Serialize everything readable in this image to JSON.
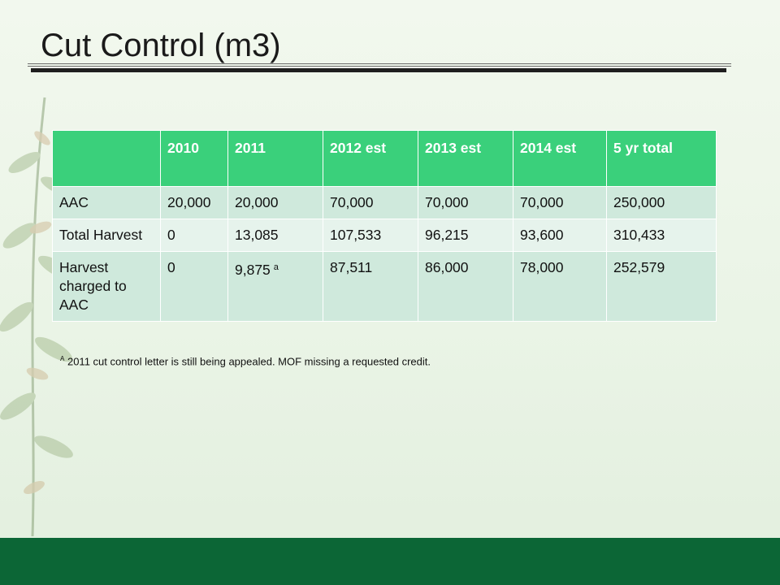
{
  "slide": {
    "title": "Cut Control (m3)",
    "colors": {
      "header": "#3ad07b",
      "row_dark": "#cfe9dc",
      "row_light": "#e6f3ec",
      "band": "#0c6636"
    }
  },
  "table": {
    "headers": [
      "",
      "2010",
      "2011",
      "2012 est",
      "2013 est",
      "2014 est",
      "5 yr total"
    ],
    "rows": [
      {
        "label": "AAC",
        "cells": [
          "20,000",
          "20,000",
          "70,000",
          "70,000",
          "70,000",
          "250,000"
        ]
      },
      {
        "label": "Total Harvest",
        "cells": [
          "0",
          "13,085",
          "107,533",
          "96,215",
          "93,600",
          "310,433"
        ]
      },
      {
        "label": "Harvest charged to AAC",
        "cells": [
          "0",
          "9,875",
          "87,511",
          "86,000",
          "78,000",
          "252,579"
        ],
        "note_mark": "a"
      }
    ]
  },
  "footnote": {
    "mark": "A",
    "text": "2011 cut control letter is still being appealed. MOF missing a requested credit."
  },
  "decor": {
    "icon": "fern-icon"
  }
}
